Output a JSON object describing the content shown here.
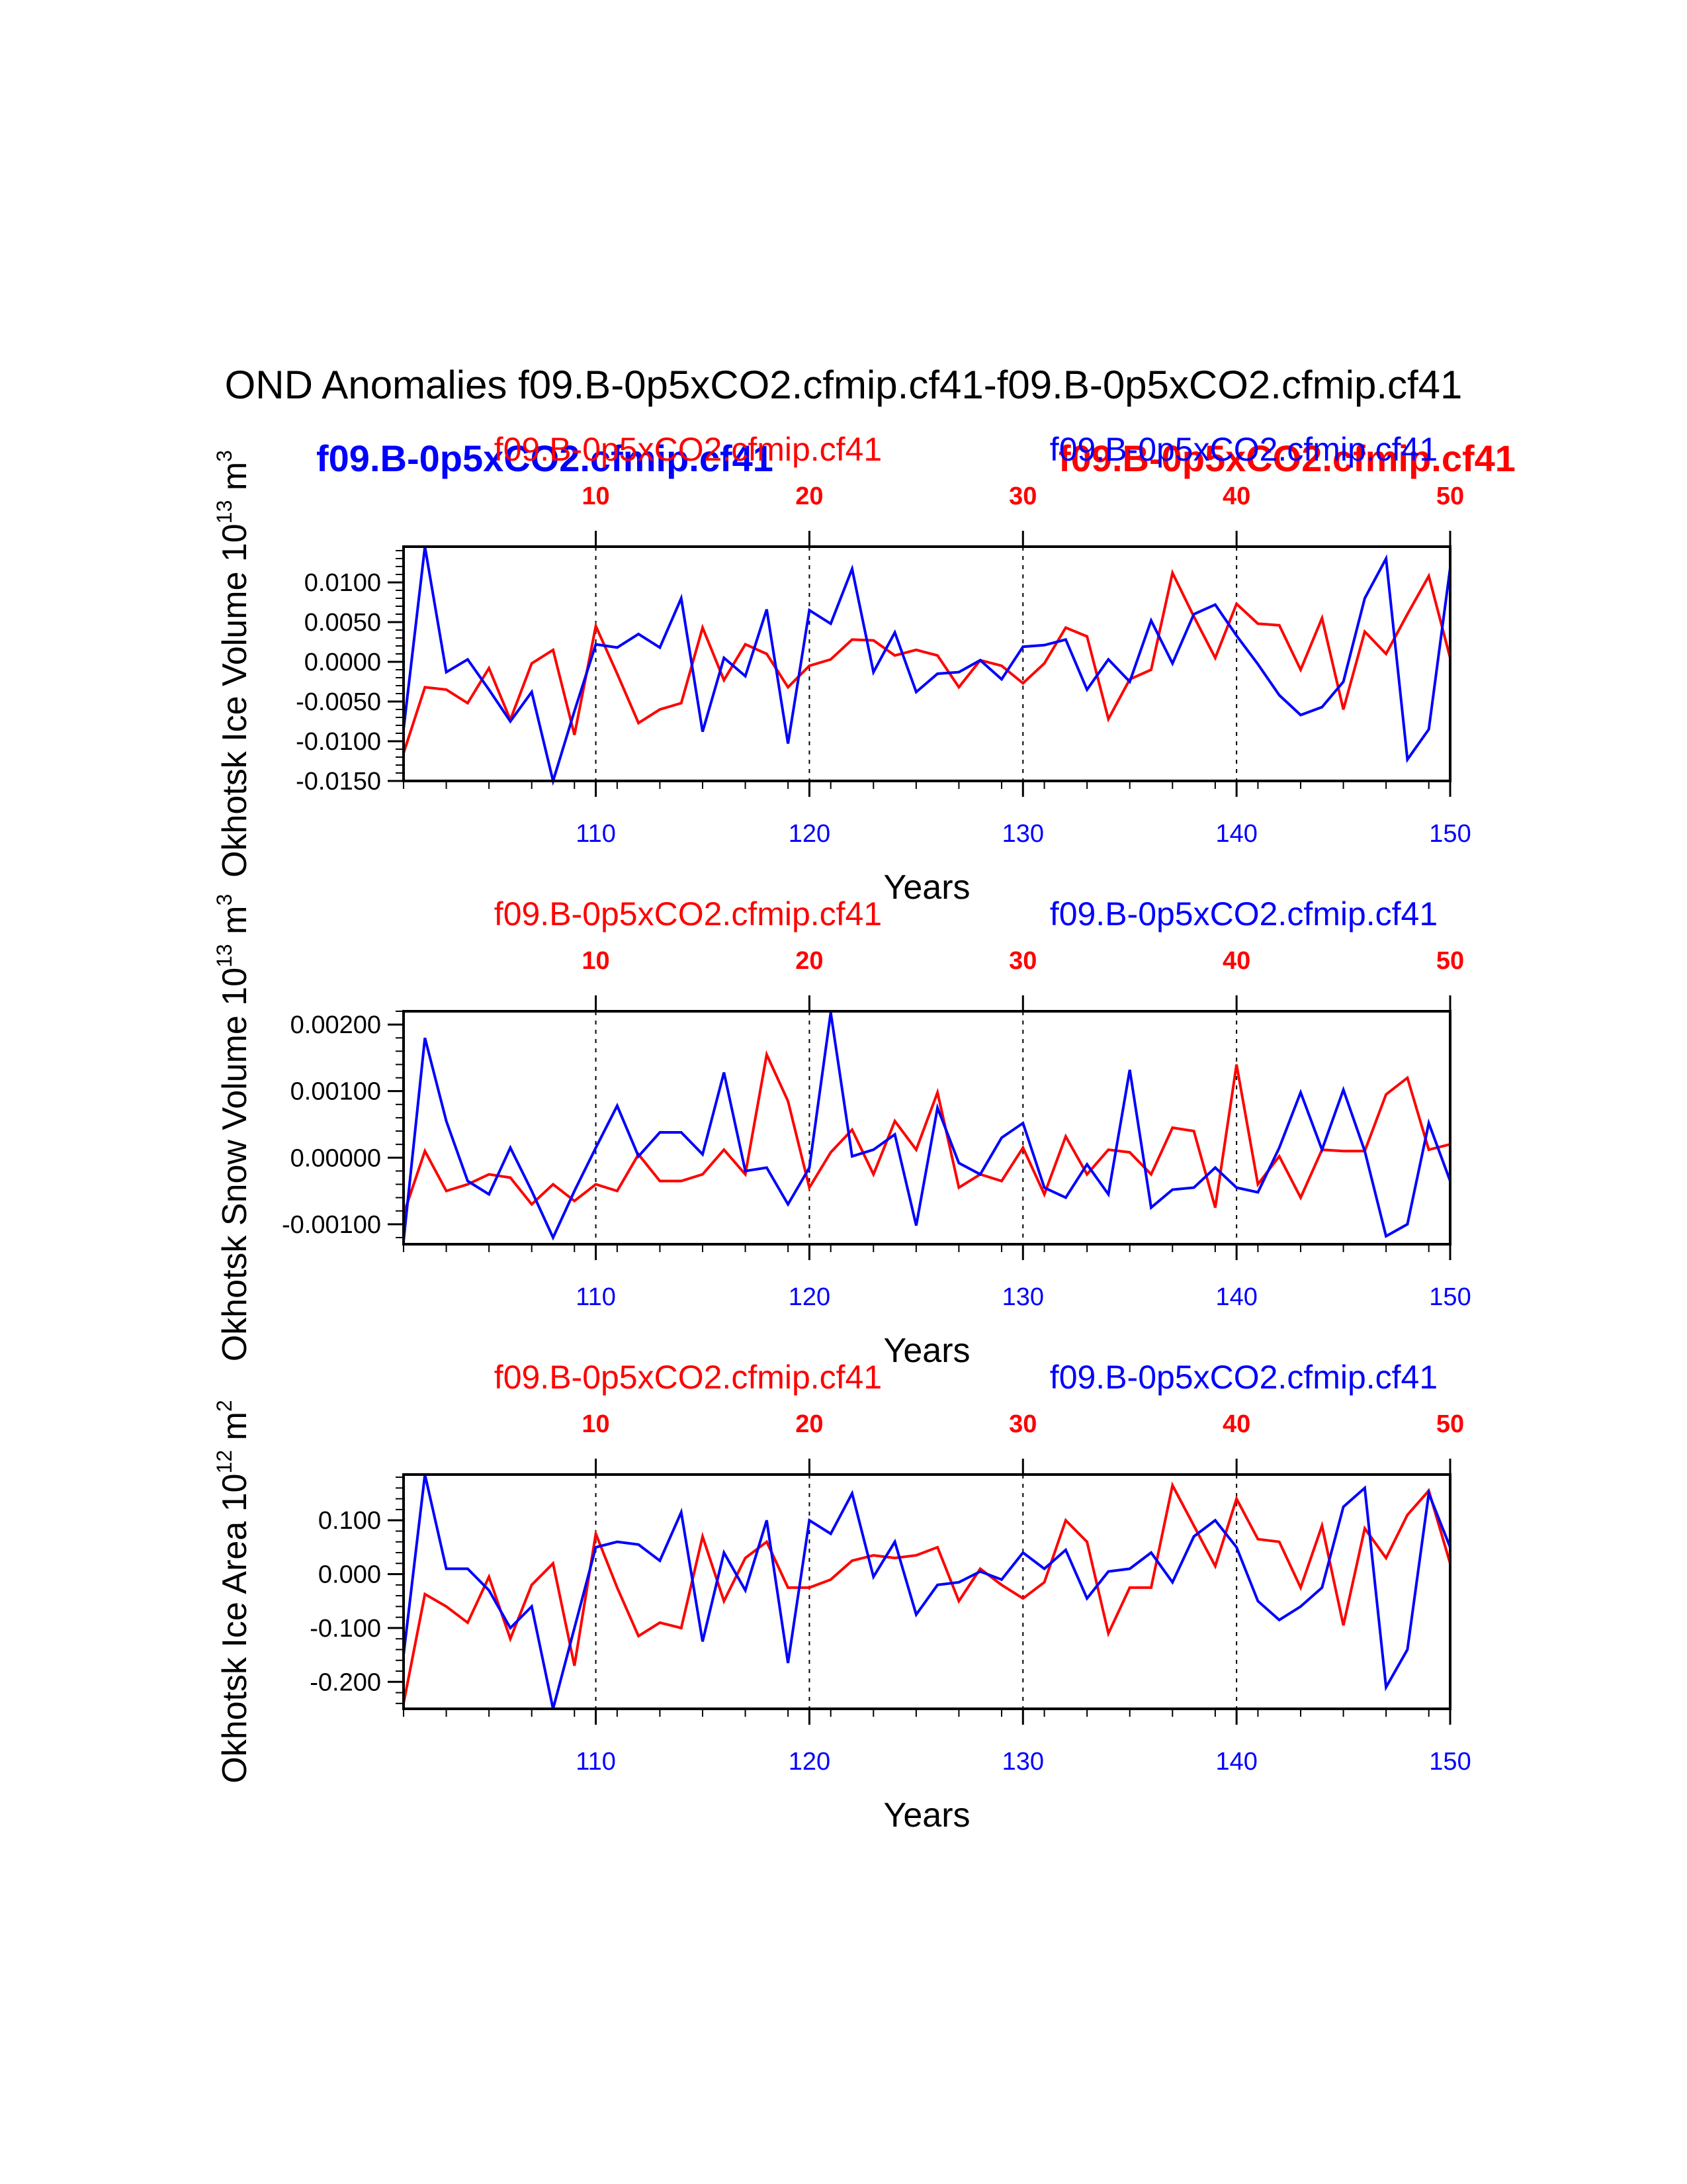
{
  "figure": {
    "title": "OND Anomalies f09.B-0p5xCO2.cfmip.cf41-f09.B-0p5xCO2.cfmip.cf41",
    "overlay_labels": {
      "left": "f09.B-0p5xCO2.cfmip.cf41",
      "right": "f09.B-0p5xCO2.cfmip.cf41"
    }
  },
  "colors": {
    "series_a": "#ff0000",
    "series_b": "#0000ff",
    "axis": "#000000"
  },
  "chart_data": [
    {
      "type": "line",
      "ylabel": "Okhotsk Ice Volume 10",
      "ylabel_exp": "13",
      "ylabel_unit": " m",
      "ylabel_unit_exp": "3",
      "xlabel": "Years",
      "top_label_left": "f09.B-0p5xCO2.cfmip.cf41",
      "top_label_right": "f09.B-0p5xCO2.cfmip.cf41",
      "ylim": [
        -0.015,
        0.0145
      ],
      "yticks": [
        -0.015,
        -0.01,
        -0.005,
        0.0,
        0.005,
        0.01
      ],
      "ytick_labels": [
        "-0.0150",
        "-0.0100",
        "-0.0050",
        "0.0000",
        "0.0050",
        "0.0100"
      ],
      "yminor_step": 0.001,
      "bottom_xlim": [
        101,
        150
      ],
      "bottom_ticks": [
        110,
        120,
        130,
        140,
        150
      ],
      "bottom_tick_labels": [
        "110",
        "120",
        "130",
        "140",
        "150"
      ],
      "top_xlim": [
        1,
        50
      ],
      "top_ticks": [
        10,
        20,
        30,
        40,
        50
      ],
      "top_tick_labels": [
        "10",
        "20",
        "30",
        "40",
        "50"
      ],
      "series": [
        {
          "name": "f09.B-0p5xCO2.cfmip.cf41 (red)",
          "color": "#ff0000",
          "axis": "top",
          "x": [
            1,
            2,
            3,
            4,
            5,
            6,
            7,
            8,
            9,
            10,
            11,
            12,
            13,
            14,
            15,
            16,
            17,
            18,
            19,
            20,
            21,
            22,
            23,
            24,
            25,
            26,
            27,
            28,
            29,
            30,
            31,
            32,
            33,
            34,
            35,
            36,
            37,
            38,
            39,
            40,
            41,
            42,
            43,
            44,
            45,
            46,
            47,
            48,
            49,
            50
          ],
          "values": [
            -0.0115,
            -0.0032,
            -0.0035,
            -0.0052,
            -0.0008,
            -0.0073,
            -0.0002,
            0.0015,
            -0.0092,
            0.0045,
            -0.0015,
            -0.0077,
            -0.006,
            -0.0052,
            0.0043,
            -0.0023,
            0.0022,
            0.001,
            -0.0032,
            -0.0005,
            0.0003,
            0.0028,
            0.0027,
            0.0008,
            0.0015,
            0.0008,
            -0.0032,
            0.0002,
            -0.0005,
            -0.0027,
            -0.0002,
            0.0043,
            0.0032,
            -0.0072,
            -0.0022,
            -0.001,
            0.0112,
            0.0057,
            0.0005,
            0.0073,
            0.0048,
            0.0046,
            -0.001,
            0.0055,
            -0.006,
            0.0038,
            0.001,
            0.006,
            0.0108,
            0.0005
          ]
        },
        {
          "name": "f09.B-0p5xCO2.cfmip.cf41 (blue)",
          "color": "#0000ff",
          "axis": "bottom",
          "x": [
            101,
            102,
            103,
            104,
            105,
            106,
            107,
            108,
            109,
            110,
            111,
            112,
            113,
            114,
            115,
            116,
            117,
            118,
            119,
            120,
            121,
            122,
            123,
            124,
            125,
            126,
            127,
            128,
            129,
            130,
            131,
            132,
            133,
            134,
            135,
            136,
            137,
            138,
            139,
            140,
            141,
            142,
            143,
            144,
            145,
            146,
            147,
            148,
            149,
            150
          ],
          "values": [
            -0.0085,
            0.0145,
            -0.0013,
            0.0003,
            -0.0035,
            -0.0075,
            -0.0038,
            -0.015,
            -0.0062,
            0.0022,
            0.0018,
            0.0035,
            0.0018,
            0.008,
            -0.0088,
            0.0005,
            -0.0018,
            0.0066,
            -0.0103,
            0.0065,
            0.0048,
            0.0117,
            -0.0013,
            0.0037,
            -0.0038,
            -0.0015,
            -0.0013,
            0.0002,
            -0.0022,
            0.0019,
            0.0021,
            0.0028,
            -0.0035,
            0.0003,
            -0.0025,
            0.0052,
            -0.0002,
            0.006,
            0.0072,
            0.0033,
            -0.0003,
            -0.0042,
            -0.0067,
            -0.0057,
            -0.0025,
            0.008,
            0.013,
            -0.0123,
            -0.0085,
            0.0118
          ]
        }
      ]
    },
    {
      "type": "line",
      "ylabel": "Okhotsk Snow Volume 10",
      "ylabel_exp": "13",
      "ylabel_unit": " m",
      "ylabel_unit_exp": "3",
      "xlabel": "Years",
      "top_label_left": "f09.B-0p5xCO2.cfmip.cf41",
      "top_label_right": "f09.B-0p5xCO2.cfmip.cf41",
      "ylim": [
        -0.0013,
        0.0022
      ],
      "yticks": [
        -0.001,
        0.0,
        0.001,
        0.002
      ],
      "ytick_labels": [
        "-0.00100",
        "0.00000",
        "0.00100",
        "0.00200"
      ],
      "yminor_step": 0.0002,
      "bottom_xlim": [
        101,
        150
      ],
      "bottom_ticks": [
        110,
        120,
        130,
        140,
        150
      ],
      "bottom_tick_labels": [
        "110",
        "120",
        "130",
        "140",
        "150"
      ],
      "top_xlim": [
        1,
        50
      ],
      "top_ticks": [
        10,
        20,
        30,
        40,
        50
      ],
      "top_tick_labels": [
        "10",
        "20",
        "30",
        "40",
        "50"
      ],
      "series": [
        {
          "name": "f09.B-0p5xCO2.cfmip.cf41 (red)",
          "color": "#ff0000",
          "axis": "top",
          "x": [
            1,
            2,
            3,
            4,
            5,
            6,
            7,
            8,
            9,
            10,
            11,
            12,
            13,
            14,
            15,
            16,
            17,
            18,
            19,
            20,
            21,
            22,
            23,
            24,
            25,
            26,
            27,
            28,
            29,
            30,
            31,
            32,
            33,
            34,
            35,
            36,
            37,
            38,
            39,
            40,
            41,
            42,
            43,
            44,
            45,
            46,
            47,
            48,
            49,
            50
          ],
          "values": [
            -0.00085,
            0.0001,
            -0.0005,
            -0.0004,
            -0.00025,
            -0.0003,
            -0.0007,
            -0.0004,
            -0.00065,
            -0.0004,
            -0.0005,
            5e-05,
            -0.00035,
            -0.00035,
            -0.00025,
            0.00012,
            -0.00025,
            0.00155,
            0.00085,
            -0.00045,
            8e-05,
            0.00042,
            -0.00025,
            0.00055,
            0.00012,
            0.00098,
            -0.00045,
            -0.00025,
            -0.00035,
            0.00015,
            -0.00055,
            0.00032,
            -0.00025,
            0.00012,
            8e-05,
            -0.00025,
            0.00045,
            0.0004,
            -0.00075,
            0.0014,
            -0.0004,
            2e-05,
            -0.0006,
            0.00012,
            0.0001,
            0.0001,
            0.00095,
            0.0012,
            0.00012,
            0.0002
          ]
        },
        {
          "name": "f09.B-0p5xCO2.cfmip.cf41 (blue)",
          "color": "#0000ff",
          "axis": "bottom",
          "x": [
            101,
            102,
            103,
            104,
            105,
            106,
            107,
            108,
            109,
            110,
            111,
            112,
            113,
            114,
            115,
            116,
            117,
            118,
            119,
            120,
            121,
            122,
            123,
            124,
            125,
            126,
            127,
            128,
            129,
            130,
            131,
            132,
            133,
            134,
            135,
            136,
            137,
            138,
            139,
            140,
            141,
            142,
            143,
            144,
            145,
            146,
            147,
            148,
            149,
            150
          ],
          "values": [
            -0.00125,
            0.0018,
            0.00055,
            -0.00035,
            -0.00055,
            0.00015,
            -0.0005,
            -0.0012,
            -0.0005,
            0.00015,
            0.00078,
            2e-05,
            0.00038,
            0.00038,
            5e-05,
            0.00128,
            -0.0002,
            -0.00015,
            -0.0007,
            -0.00015,
            0.00218,
            2e-05,
            0.00012,
            0.00035,
            -0.00102,
            0.00075,
            -8e-05,
            -0.00025,
            0.0003,
            0.00052,
            -0.00045,
            -0.0006,
            -0.0001,
            -0.00055,
            0.00132,
            -0.00075,
            -0.00048,
            -0.00045,
            -0.00015,
            -0.00045,
            -0.00052,
            0.00015,
            0.00098,
            0.00012,
            0.00102,
            0.0001,
            -0.00118,
            -0.001,
            0.00052,
            -0.00035
          ]
        }
      ]
    },
    {
      "type": "line",
      "ylabel": "Okhotsk Ice Area 10",
      "ylabel_exp": "12",
      "ylabel_unit": " m",
      "ylabel_unit_exp": "2",
      "xlabel": "Years",
      "top_label_left": "f09.B-0p5xCO2.cfmip.cf41",
      "top_label_right": "f09.B-0p5xCO2.cfmip.cf41",
      "ylim": [
        -0.25,
        0.185
      ],
      "yticks": [
        -0.2,
        -0.1,
        0.0,
        0.1
      ],
      "ytick_labels": [
        "-0.200",
        "-0.100",
        "0.000",
        "0.100"
      ],
      "yminor_step": 0.02,
      "bottom_xlim": [
        101,
        150
      ],
      "bottom_ticks": [
        110,
        120,
        130,
        140,
        150
      ],
      "bottom_tick_labels": [
        "110",
        "120",
        "130",
        "140",
        "150"
      ],
      "top_xlim": [
        1,
        50
      ],
      "top_ticks": [
        10,
        20,
        30,
        40,
        50
      ],
      "top_tick_labels": [
        "10",
        "20",
        "30",
        "40",
        "50"
      ],
      "series": [
        {
          "name": "f09.B-0p5xCO2.cfmip.cf41 (red)",
          "color": "#ff0000",
          "axis": "top",
          "x": [
            1,
            2,
            3,
            4,
            5,
            6,
            7,
            8,
            9,
            10,
            11,
            12,
            13,
            14,
            15,
            16,
            17,
            18,
            19,
            20,
            21,
            22,
            23,
            24,
            25,
            26,
            27,
            28,
            29,
            30,
            31,
            32,
            33,
            34,
            35,
            36,
            37,
            38,
            39,
            40,
            41,
            42,
            43,
            44,
            45,
            46,
            47,
            48,
            49,
            50
          ],
          "values": [
            -0.24,
            -0.037,
            -0.06,
            -0.09,
            -0.005,
            -0.12,
            -0.02,
            0.02,
            -0.17,
            0.075,
            -0.025,
            -0.115,
            -0.09,
            -0.1,
            0.07,
            -0.05,
            0.03,
            0.06,
            -0.025,
            -0.025,
            -0.01,
            0.025,
            0.035,
            0.03,
            0.035,
            0.05,
            -0.05,
            0.01,
            -0.02,
            -0.045,
            -0.015,
            0.1,
            0.06,
            -0.11,
            -0.025,
            -0.025,
            0.165,
            0.09,
            0.015,
            0.14,
            0.065,
            0.06,
            -0.025,
            0.09,
            -0.095,
            0.085,
            0.03,
            0.11,
            0.155,
            0.02
          ]
        },
        {
          "name": "f09.B-0p5xCO2.cfmip.cf41 (blue)",
          "color": "#0000ff",
          "axis": "bottom",
          "x": [
            101,
            102,
            103,
            104,
            105,
            106,
            107,
            108,
            109,
            110,
            111,
            112,
            113,
            114,
            115,
            116,
            117,
            118,
            119,
            120,
            121,
            122,
            123,
            124,
            125,
            126,
            127,
            128,
            129,
            130,
            131,
            132,
            133,
            134,
            135,
            136,
            137,
            138,
            139,
            140,
            141,
            142,
            143,
            144,
            145,
            146,
            147,
            148,
            149,
            150
          ],
          "values": [
            -0.15,
            0.185,
            0.01,
            0.01,
            -0.03,
            -0.1,
            -0.06,
            -0.25,
            -0.1,
            0.05,
            0.06,
            0.055,
            0.025,
            0.115,
            -0.125,
            0.04,
            -0.03,
            0.1,
            -0.165,
            0.1,
            0.075,
            0.15,
            -0.005,
            0.06,
            -0.075,
            -0.02,
            -0.015,
            0.005,
            -0.01,
            0.04,
            0.01,
            0.045,
            -0.045,
            0.005,
            0.01,
            0.04,
            -0.015,
            0.07,
            0.1,
            0.05,
            -0.05,
            -0.085,
            -0.06,
            -0.025,
            0.125,
            0.16,
            -0.21,
            -0.14,
            0.15,
            0.05
          ]
        }
      ]
    }
  ]
}
